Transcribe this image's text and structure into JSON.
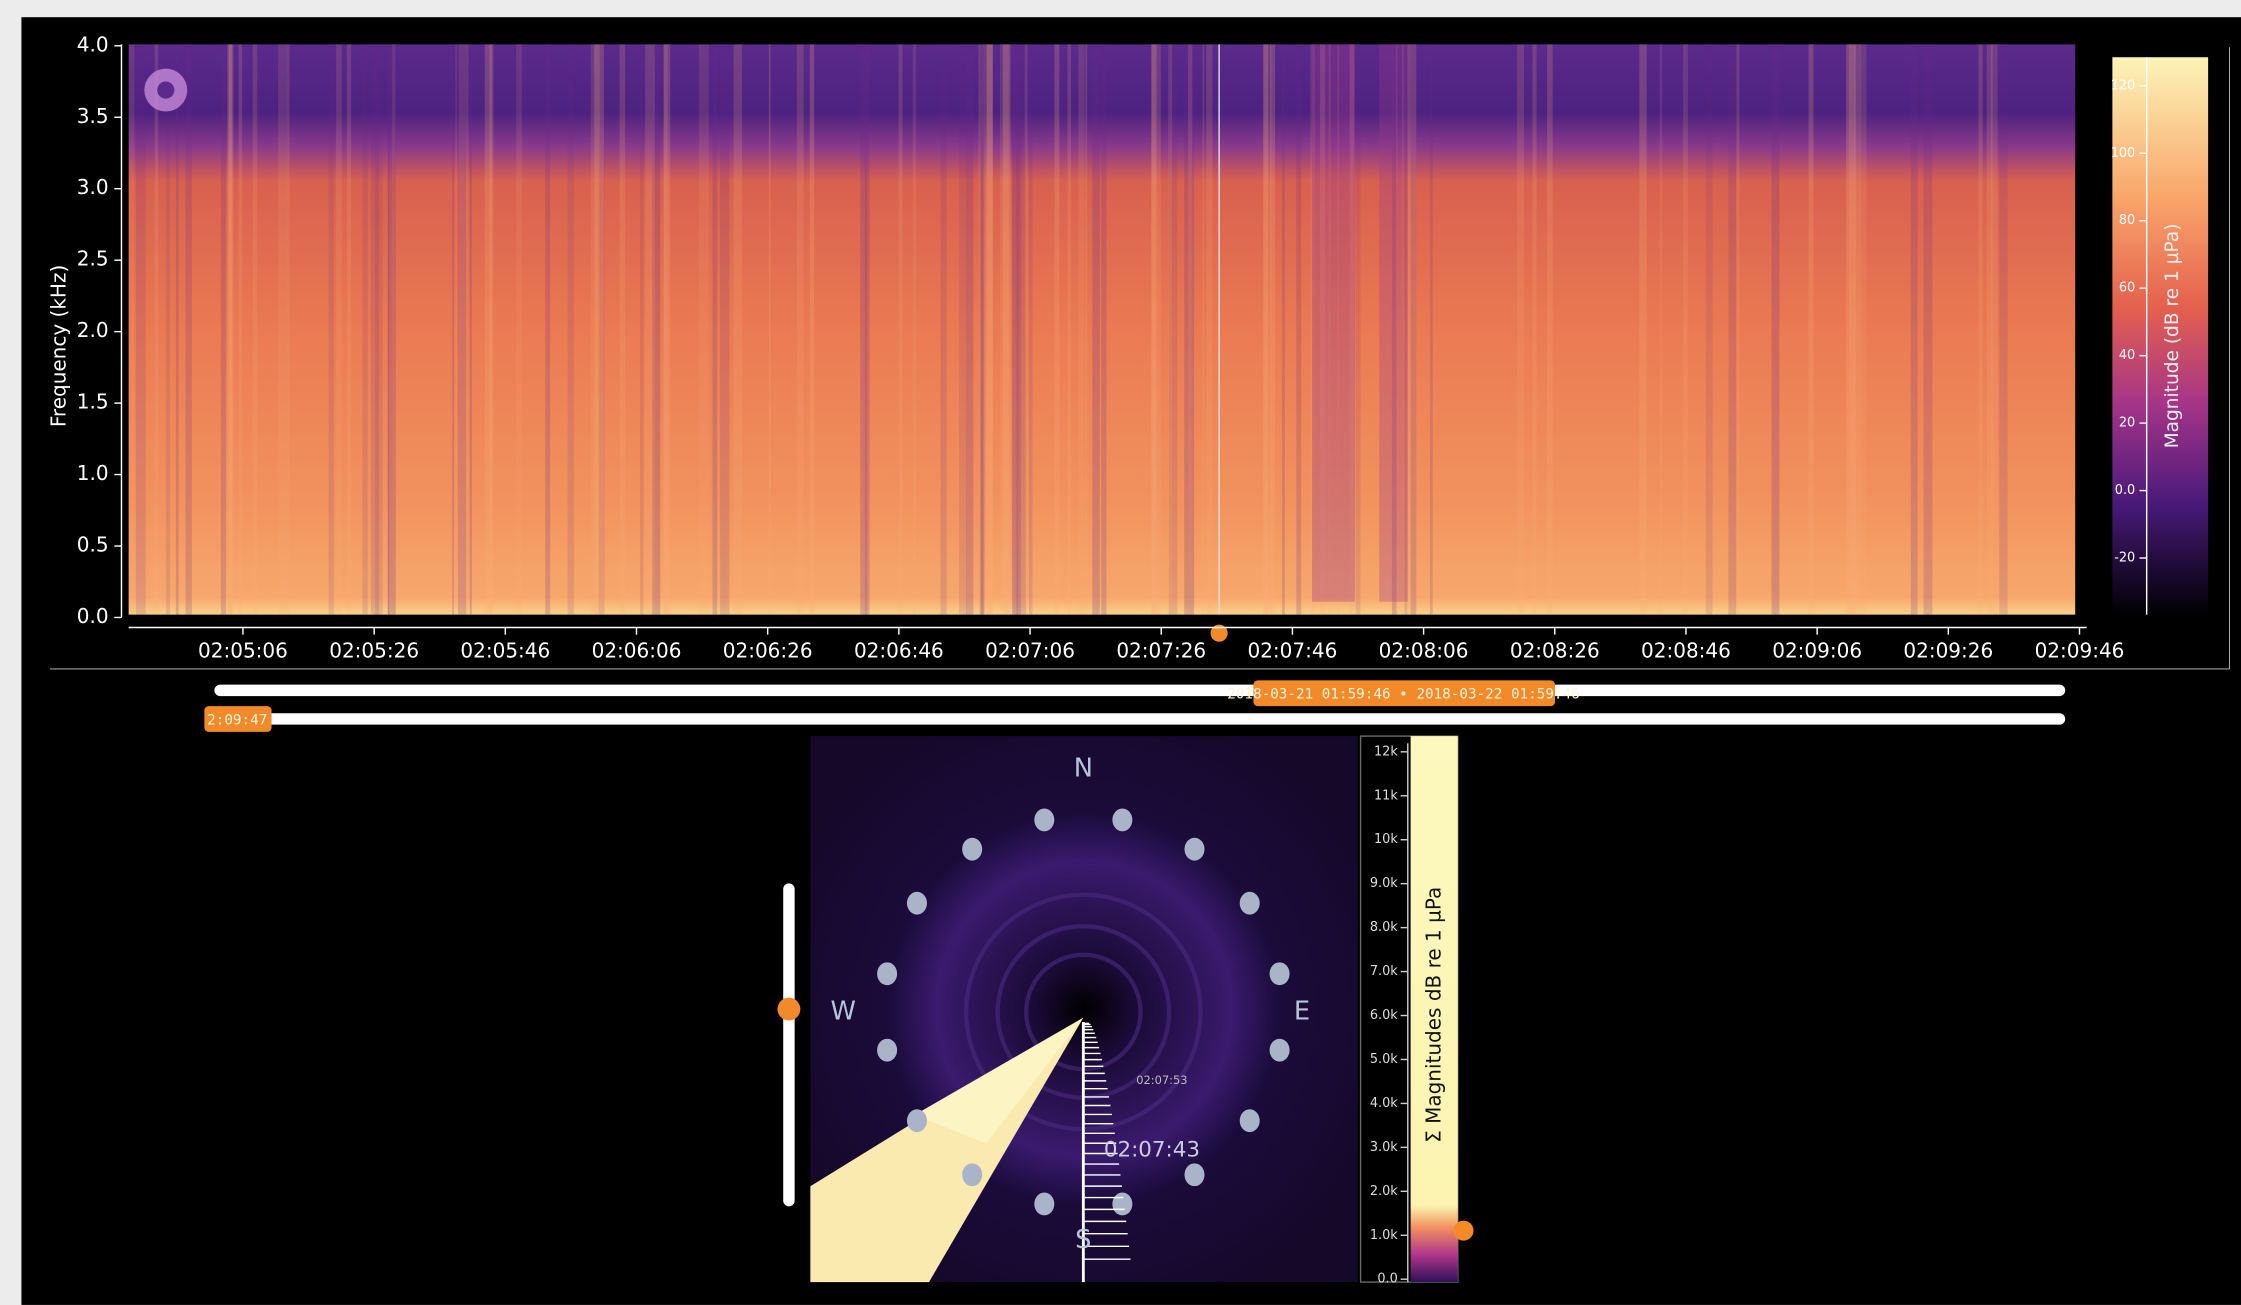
{
  "spectrogram": {
    "y_label": "Frequency (kHz)",
    "yticks": [
      "0.0",
      "0.5",
      "1.0",
      "1.5",
      "2.0",
      "2.5",
      "3.0",
      "3.5",
      "4.0"
    ],
    "xticks": [
      "02:05:06",
      "02:05:26",
      "02:05:46",
      "02:06:06",
      "02:06:26",
      "02:06:46",
      "02:07:06",
      "02:07:26",
      "02:07:46",
      "02:08:06",
      "02:08:26",
      "02:08:46",
      "02:09:06",
      "02:09:26",
      "02:09:46"
    ]
  },
  "colorbar": {
    "label": "Magnitude (dB re 1 µPa)",
    "ticks": [
      "120",
      "100",
      "80",
      "60",
      "40",
      "20",
      "0.0",
      "-20"
    ]
  },
  "range_slider": {
    "label": "2018-03-21 01:59:46 • 2018-03-22 01:59:46"
  },
  "time_slider": {
    "label": "2:09:47"
  },
  "polar": {
    "compass": [
      "N",
      "E",
      "S",
      "W"
    ],
    "time": "02:07:43",
    "trace_label": "02:07:53"
  },
  "magnitude_bar": {
    "label": "Σ Magnitudes dB re 1 µPa",
    "ticks": [
      "12k",
      "11k",
      "10k",
      "9.0k",
      "8.0k",
      "7.0k",
      "6.0k",
      "5.0k",
      "4.0k",
      "3.0k",
      "2.0k",
      "1.0k",
      "0.0"
    ]
  }
}
